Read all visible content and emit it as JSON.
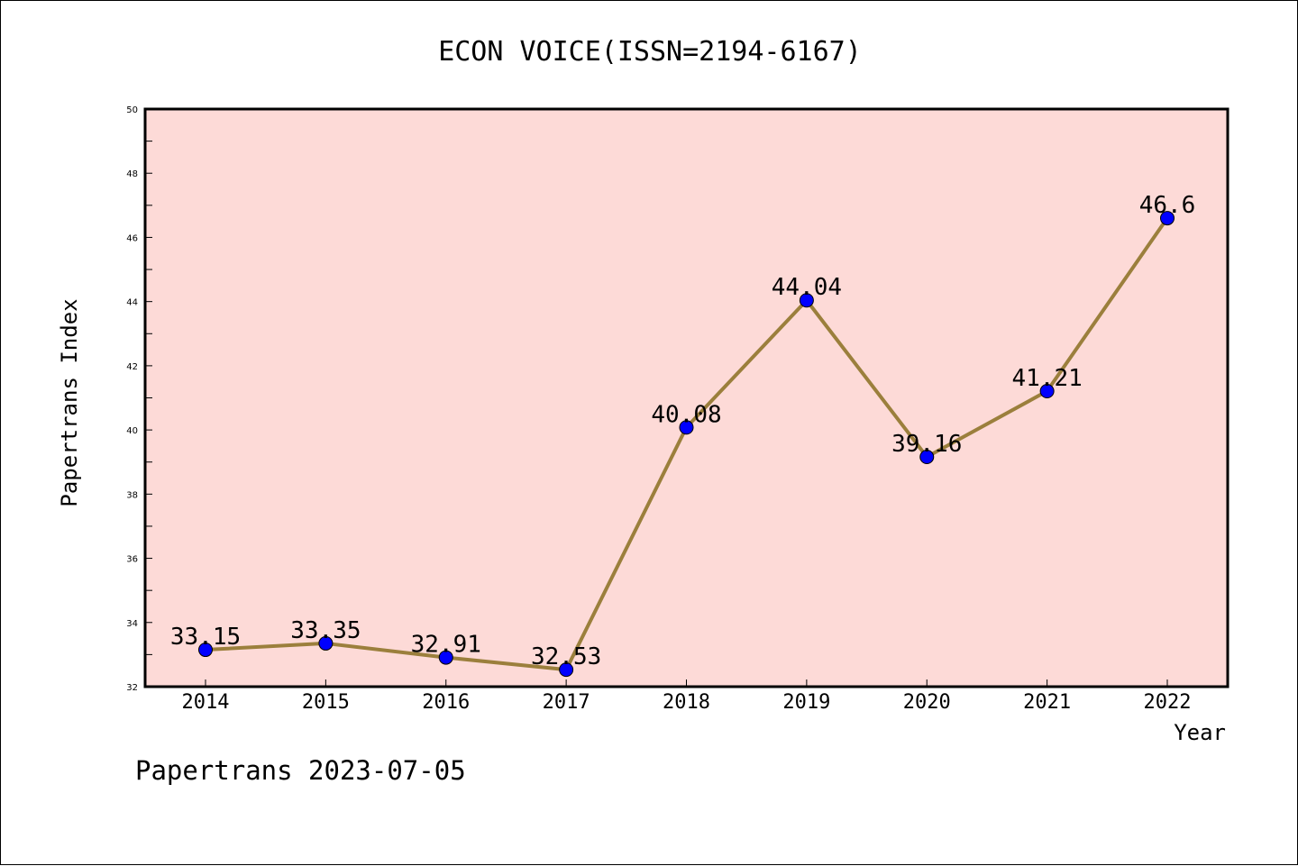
{
  "chart_data": {
    "type": "line",
    "title": "ECON VOICE(ISSN=2194-6167)",
    "xlabel": "Year",
    "ylabel": "Papertrans Index",
    "categories": [
      "2014",
      "2015",
      "2016",
      "2017",
      "2018",
      "2019",
      "2020",
      "2021",
      "2022"
    ],
    "series": [
      {
        "values": [
          33.15,
          33.35,
          32.91,
          32.53,
          40.08,
          44.04,
          39.16,
          41.21,
          46.6
        ],
        "labels": [
          "33.15",
          "33.35",
          "32.91",
          "32.53",
          "40.08",
          "44.04",
          "39.16",
          "41.21",
          "46.6"
        ]
      }
    ],
    "ylim": [
      32,
      50
    ],
    "yticks": [
      32,
      34,
      36,
      38,
      40,
      42,
      44,
      46,
      48,
      50
    ],
    "grid": false,
    "colors": {
      "plot_background": "#FDDAD7",
      "line": "#9B7F3C",
      "marker": "#0000FF"
    }
  },
  "footer": "Papertrans 2023-07-05"
}
